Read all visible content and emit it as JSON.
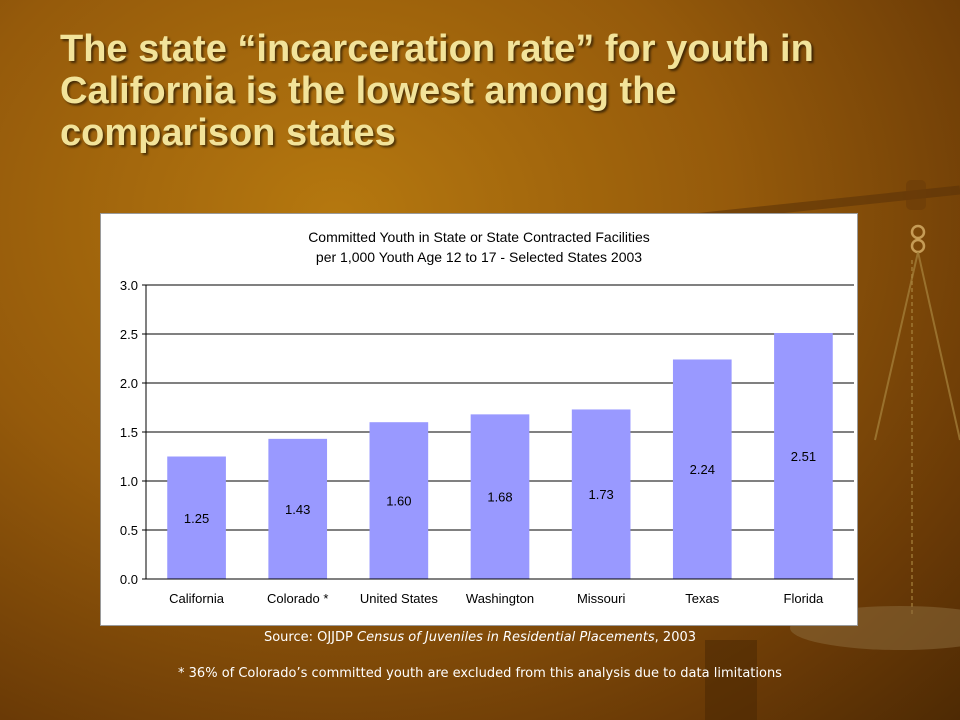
{
  "slide": {
    "title": "The state “incarceration rate” for youth in California is the lowest among the comparison states",
    "source_prefix": "Source: OJJDP ",
    "source_title": "Census of Juveniles in Residential Placements",
    "source_suffix": ", 2003",
    "note": "* 36% of Colorado’s committed youth are excluded from this analysis due to data limitations"
  },
  "colors": {
    "bar": "#9999ff",
    "title_text": "#f2e39a",
    "background": "#955a0b"
  },
  "chart_data": {
    "type": "bar",
    "title_lines": [
      "Committed Youth in State or State Contracted Facilities",
      "per 1,000 Youth Age 12 to 17 - Selected States 2003"
    ],
    "categories": [
      "California",
      "Colorado *",
      "United States",
      "Washington",
      "Missouri",
      "Texas",
      "Florida"
    ],
    "values": [
      1.25,
      1.43,
      1.6,
      1.68,
      1.73,
      2.24,
      2.51
    ],
    "value_labels": [
      "1.25",
      "1.43",
      "1.60",
      "1.68",
      "1.73",
      "2.24",
      "2.51"
    ],
    "ylim": [
      0,
      3.0
    ],
    "yticks": [
      "0.0",
      "0.5",
      "1.0",
      "1.5",
      "2.0",
      "2.5",
      "3.0"
    ],
    "grid": true,
    "legend": "none"
  }
}
